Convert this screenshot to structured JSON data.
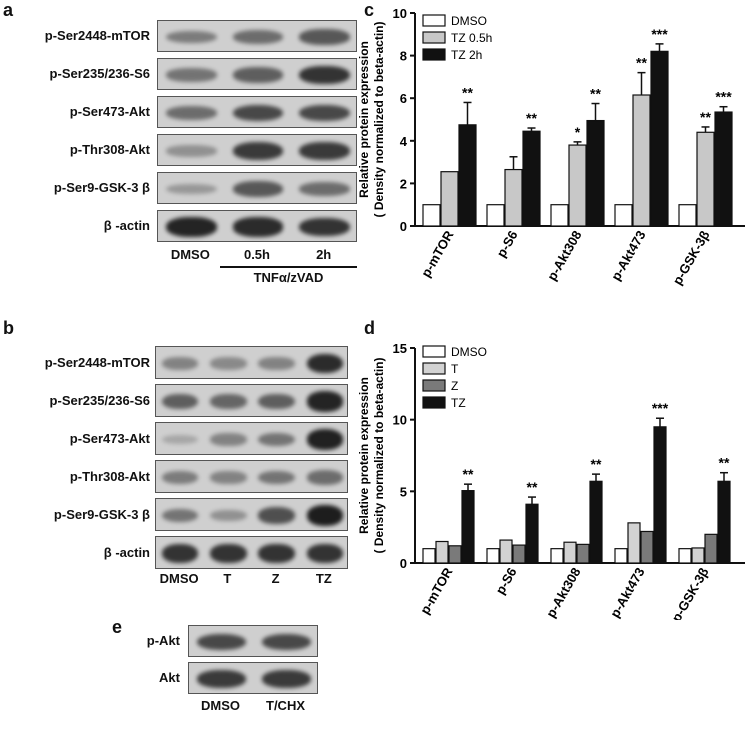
{
  "panel_a": {
    "letter": "a",
    "rows": [
      "p-Ser2448-mTOR",
      "p-Ser235/236-S6",
      "p-Ser473-Akt",
      "p-Thr308-Akt",
      "p-Ser9-GSK-3 β",
      "β -actin"
    ],
    "lanes": [
      "DMSO",
      "0.5h",
      "2h"
    ],
    "group_label": "TNFα/zVAD"
  },
  "panel_b": {
    "letter": "b",
    "rows": [
      "p-Ser2448-mTOR",
      "p-Ser235/236-S6",
      "p-Ser473-Akt",
      "p-Thr308-Akt",
      "p-Ser9-GSK-3 β",
      "β -actin"
    ],
    "lanes": [
      "DMSO",
      "T",
      "Z",
      "TZ"
    ]
  },
  "panel_e": {
    "letter": "e",
    "rows": [
      "p-Akt",
      "Akt"
    ],
    "lanes": [
      "DMSO",
      "T/CHX"
    ]
  },
  "chart_data": [
    {
      "id": "c",
      "letter": "c",
      "type": "bar",
      "categories": [
        "p-mTOR",
        "p-S6",
        "p-Akt308",
        "p-Akt473",
        "p-GSK-3β"
      ],
      "series": [
        {
          "name": "DMSO",
          "values": [
            1,
            1,
            1,
            1,
            1
          ],
          "errors": [
            0,
            0,
            0,
            0,
            0
          ],
          "color": "#ffffff"
        },
        {
          "name": "TZ 0.5h",
          "values": [
            2.55,
            2.65,
            3.8,
            6.15,
            4.4
          ],
          "errors": [
            0,
            0.6,
            0.15,
            1.05,
            0.25
          ],
          "color": "#c8c8c8"
        },
        {
          "name": "TZ 2h",
          "values": [
            4.75,
            4.45,
            4.95,
            8.2,
            5.35
          ],
          "errors": [
            1.05,
            0.15,
            0.8,
            0.35,
            0.25
          ],
          "color": "#111111"
        }
      ],
      "significance": [
        [
          "",
          "",
          "**"
        ],
        [
          "",
          "",
          "**"
        ],
        [
          "",
          "*",
          "**"
        ],
        [
          "",
          "**",
          "***"
        ],
        [
          "",
          "**",
          "***"
        ]
      ],
      "ylabel_line1": "Relative protein expression",
      "ylabel_line2": "( Density normalized to beta-actin)",
      "ylim": [
        0,
        10
      ],
      "yticks": [
        0,
        2,
        4,
        6,
        8,
        10
      ],
      "legend": "top-left"
    },
    {
      "id": "d",
      "letter": "d",
      "type": "bar",
      "categories": [
        "p-mTOR",
        "p-S6",
        "p-Akt308",
        "p-Akt473",
        "p-GSK-3β"
      ],
      "series": [
        {
          "name": "DMSO",
          "values": [
            1,
            1,
            1,
            1,
            1
          ],
          "errors": [
            0,
            0,
            0,
            0,
            0
          ],
          "color": "#ffffff"
        },
        {
          "name": "T",
          "values": [
            1.5,
            1.6,
            1.45,
            2.8,
            1.05
          ],
          "errors": [
            0,
            0,
            0,
            0,
            0
          ],
          "color": "#d2d2d2"
        },
        {
          "name": "Z",
          "values": [
            1.2,
            1.25,
            1.3,
            2.2,
            2.0
          ],
          "errors": [
            0,
            0,
            0,
            0,
            0
          ],
          "color": "#7a7a7a"
        },
        {
          "name": "TZ",
          "values": [
            5.05,
            4.1,
            5.7,
            9.5,
            5.7
          ],
          "errors": [
            0.45,
            0.5,
            0.5,
            0.6,
            0.6
          ],
          "color": "#111111"
        }
      ],
      "significance": [
        [
          "",
          "",
          "",
          "**"
        ],
        [
          "",
          "",
          "",
          "**"
        ],
        [
          "",
          "",
          "",
          "**"
        ],
        [
          "",
          "",
          "",
          "***"
        ],
        [
          "",
          "",
          "",
          "**"
        ]
      ],
      "ylabel_line1": "Relative protein expression",
      "ylabel_line2": "( Density normalized to beta-actin)",
      "ylim": [
        0,
        15
      ],
      "yticks": [
        0,
        5,
        10,
        15
      ],
      "legend": "top-left"
    }
  ]
}
